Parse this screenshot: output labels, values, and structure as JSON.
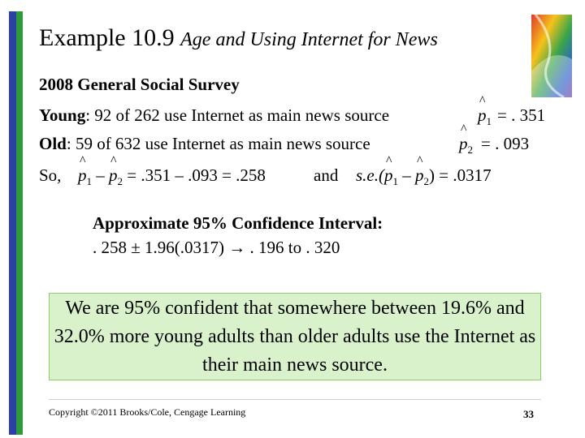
{
  "title": {
    "main": "Example 10.9",
    "sub": "Age and Using Internet for News"
  },
  "survey": "2008 General Social Survey",
  "young": {
    "label": "Young",
    "text": ": 92 of 262 use Internet as main news source",
    "value": "= . 351"
  },
  "old": {
    "label": "Old",
    "text": ": 59 of 632 use Internet as main news source",
    "value": "= . 093"
  },
  "so": {
    "label": "So,",
    "difference": "= .351 – .093 = .258",
    "and": "and",
    "se_prefix": "s.e.(",
    "se_value": ") = .0317"
  },
  "ci": {
    "title": "Approximate 95% Confidence Interval:",
    "body": ". 258 ± 1.96(.0317) → . 196 to . 320"
  },
  "callout": "We are 95% confident that somewhere between 19.6% and 32.0% more young adults than older adults use the Internet as their main news source.",
  "footer": "Copyright ©2011 Brooks/Cole, Cengage Learning",
  "page_number": "33",
  "colors": {
    "bar_blue": "#2b41a8",
    "bar_green": "#2f9a3c",
    "callout_bg": "#d9f2cb"
  }
}
